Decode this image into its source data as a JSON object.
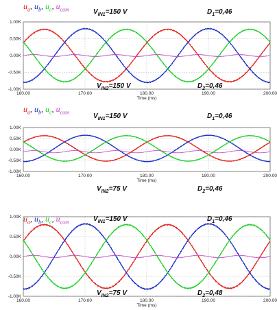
{
  "chart_data": [
    {
      "type": "line",
      "xlabel": "Time (ms)",
      "xlim": [
        160.0,
        200.0
      ],
      "ylim": [
        -1.0,
        1.0
      ],
      "x_ticks": [
        "160.00",
        "170.00",
        "180.00",
        "190.00",
        "200.00"
      ],
      "y_ticks": [
        "1.00K",
        "0.50K",
        "0.00K",
        "-0.50K",
        "-1.00K"
      ],
      "grid": true,
      "legend": [
        {
          "sym": "u",
          "sub": "a",
          "color": "#e0201a"
        },
        {
          "sym": "u",
          "sub": "b",
          "color": "#1a2fc8"
        },
        {
          "sym": "u",
          "sub": "c",
          "color": "#1ecf2a"
        },
        {
          "sym": "u",
          "sub": "com",
          "color": "#c040c8"
        }
      ],
      "annotations": {
        "vin1": "150 V",
        "vin2": "150 V",
        "d1": "0,46",
        "d2": "0,46"
      },
      "frequency_hz": 50,
      "series": [
        {
          "name": "ua",
          "color": "#e0201a",
          "amplitude": 0.78,
          "offset": 0.0,
          "phase_deg": 29
        },
        {
          "name": "ub",
          "color": "#1a2fc8",
          "amplitude": 0.8,
          "offset": 0.0,
          "phase_deg": -91
        },
        {
          "name": "uc",
          "color": "#1ecf2a",
          "amplitude": 0.78,
          "offset": 0.0,
          "phase_deg": 149
        },
        {
          "name": "ucom",
          "color": "#c040c8",
          "amplitude": 0.03,
          "offset": 0.0,
          "phase_deg": 0
        }
      ]
    },
    {
      "type": "line",
      "xlabel": "Time (ms)",
      "xlim": [
        160.0,
        200.0
      ],
      "ylim": [
        -1.0,
        1.0
      ],
      "x_ticks": [
        "160.00",
        "170.00",
        "180.00",
        "190.00",
        "200.00"
      ],
      "y_ticks": [
        "1.00K",
        "0.50K",
        "0.00K",
        "-0.50K",
        "-1.00K"
      ],
      "grid": true,
      "legend": [
        {
          "sym": "u",
          "sub": "a",
          "color": "#e0201a"
        },
        {
          "sym": "u",
          "sub": "b",
          "color": "#1a2fc8"
        },
        {
          "sym": "u",
          "sub": "c",
          "color": "#1ecf2a"
        },
        {
          "sym": "u",
          "sub": "com",
          "color": "#c040c8"
        }
      ],
      "annotations": {
        "vin1": "150 V",
        "vin2": "75 V",
        "d1": "0,46",
        "d2": "0,46"
      },
      "frequency_hz": 50,
      "series": [
        {
          "name": "ua",
          "color": "#e0201a",
          "amplitude": 0.58,
          "offset": 0.05,
          "phase_deg": 29
        },
        {
          "name": "ub",
          "color": "#1a2fc8",
          "amplitude": 0.6,
          "offset": 0.05,
          "phase_deg": -91
        },
        {
          "name": "uc",
          "color": "#1ecf2a",
          "amplitude": 0.58,
          "offset": 0.05,
          "phase_deg": 149
        },
        {
          "name": "ucom",
          "color": "#c040c8",
          "amplitude": 0.05,
          "offset": -0.1,
          "phase_deg": 0
        }
      ]
    },
    {
      "type": "line",
      "xlabel": "Time (ms)",
      "xlim": [
        160.0,
        200.0
      ],
      "ylim": [
        -1.0,
        1.0
      ],
      "x_ticks": [
        "160.00",
        "170.00",
        "180.00",
        "190.00",
        "200.00"
      ],
      "y_ticks": [
        "1.00K",
        "0.50K",
        "0.00K",
        "-0.50K",
        "-1.00K"
      ],
      "grid": true,
      "legend": [
        {
          "sym": "u",
          "sub": "a",
          "color": "#e0201a"
        },
        {
          "sym": "u",
          "sub": "b",
          "color": "#1a2fc8"
        },
        {
          "sym": "u",
          "sub": "c",
          "color": "#1ecf2a"
        },
        {
          "sym": "u",
          "sub": "com",
          "color": "#c040c8"
        }
      ],
      "annotations": {
        "vin1": "150 V",
        "vin2": "75 V",
        "d1": "0,46",
        "d2": "0,48"
      },
      "frequency_hz": 50,
      "series": [
        {
          "name": "ua",
          "color": "#e0201a",
          "amplitude": 0.8,
          "offset": 0.0,
          "phase_deg": 29
        },
        {
          "name": "ub",
          "color": "#1a2fc8",
          "amplitude": 0.82,
          "offset": 0.0,
          "phase_deg": -91
        },
        {
          "name": "uc",
          "color": "#1ecf2a",
          "amplitude": 0.8,
          "offset": 0.0,
          "phase_deg": 149
        },
        {
          "name": "ucom",
          "color": "#c040c8",
          "amplitude": 0.03,
          "offset": 0.0,
          "phase_deg": 0
        }
      ]
    }
  ]
}
